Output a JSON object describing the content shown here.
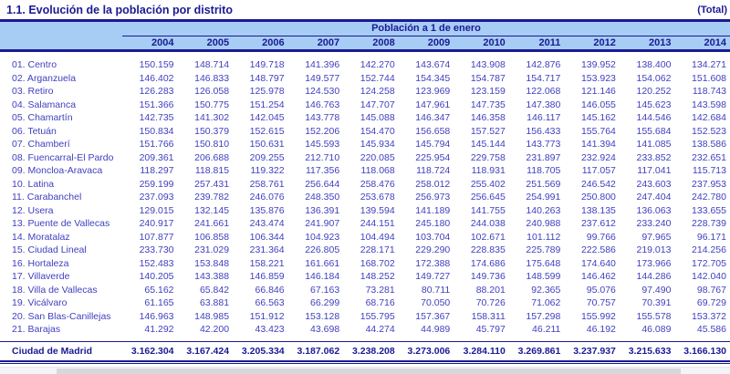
{
  "title": "1.1. Evolución de la población por distrito",
  "total_note": "(Total)",
  "header": {
    "group_label": "Población a 1 de enero",
    "years": [
      "2004",
      "2005",
      "2006",
      "2007",
      "2008",
      "2009",
      "2010",
      "2011",
      "2012",
      "2013",
      "2014"
    ]
  },
  "rows": [
    {
      "label": "01. Centro",
      "values": [
        "150.159",
        "148.714",
        "149.718",
        "141.396",
        "142.270",
        "143.674",
        "143.908",
        "142.876",
        "139.952",
        "138.400",
        "134.271"
      ]
    },
    {
      "label": "02. Arganzuela",
      "values": [
        "146.402",
        "146.833",
        "148.797",
        "149.577",
        "152.744",
        "154.345",
        "154.787",
        "154.717",
        "153.923",
        "154.062",
        "151.608"
      ]
    },
    {
      "label": "03. Retiro",
      "values": [
        "126.283",
        "126.058",
        "125.978",
        "124.530",
        "124.258",
        "123.969",
        "123.159",
        "122.068",
        "121.146",
        "120.252",
        "118.743"
      ]
    },
    {
      "label": "04. Salamanca",
      "values": [
        "151.366",
        "150.775",
        "151.254",
        "146.763",
        "147.707",
        "147.961",
        "147.735",
        "147.380",
        "146.055",
        "145.623",
        "143.598"
      ]
    },
    {
      "label": "05. Chamartín",
      "values": [
        "142.735",
        "141.302",
        "142.045",
        "143.778",
        "145.088",
        "146.347",
        "146.358",
        "146.117",
        "145.162",
        "144.546",
        "142.684"
      ]
    },
    {
      "label": "06. Tetuán",
      "values": [
        "150.834",
        "150.379",
        "152.615",
        "152.206",
        "154.470",
        "156.658",
        "157.527",
        "156.433",
        "155.764",
        "155.684",
        "152.523"
      ]
    },
    {
      "label": "07. Chamberí",
      "values": [
        "151.766",
        "150.810",
        "150.631",
        "145.593",
        "145.934",
        "145.794",
        "145.144",
        "143.773",
        "141.394",
        "141.085",
        "138.586"
      ]
    },
    {
      "label": "08. Fuencarral-El Pardo",
      "values": [
        "209.361",
        "206.688",
        "209.255",
        "212.710",
        "220.085",
        "225.954",
        "229.758",
        "231.897",
        "232.924",
        "233.852",
        "232.651"
      ]
    },
    {
      "label": "09. Moncloa-Aravaca",
      "values": [
        "118.297",
        "118.815",
        "119.322",
        "117.356",
        "118.068",
        "118.724",
        "118.931",
        "118.705",
        "117.057",
        "117.041",
        "115.713"
      ]
    },
    {
      "label": "10. Latina",
      "values": [
        "259.199",
        "257.431",
        "258.761",
        "256.644",
        "258.476",
        "258.012",
        "255.402",
        "251.569",
        "246.542",
        "243.603",
        "237.953"
      ]
    },
    {
      "label": "11. Carabanchel",
      "values": [
        "237.093",
        "239.782",
        "246.076",
        "248.350",
        "253.678",
        "256.973",
        "256.645",
        "254.991",
        "250.800",
        "247.404",
        "242.780"
      ]
    },
    {
      "label": "12. Usera",
      "values": [
        "129.015",
        "132.145",
        "135.876",
        "136.391",
        "139.594",
        "141.189",
        "141.755",
        "140.263",
        "138.135",
        "136.063",
        "133.655"
      ]
    },
    {
      "label": "13. Puente de Vallecas",
      "values": [
        "240.917",
        "241.661",
        "243.474",
        "241.907",
        "244.151",
        "245.180",
        "244.038",
        "240.988",
        "237.612",
        "233.240",
        "228.739"
      ]
    },
    {
      "label": "14. Moratalaz",
      "values": [
        "107.877",
        "106.858",
        "106.344",
        "104.923",
        "104.494",
        "103.704",
        "102.671",
        "101.112",
        "99.766",
        "97.965",
        "96.171"
      ]
    },
    {
      "label": "15. Ciudad Lineal",
      "values": [
        "233.730",
        "231.029",
        "231.364",
        "226.805",
        "228.171",
        "229.290",
        "228.835",
        "225.789",
        "222.586",
        "219.013",
        "214.256"
      ]
    },
    {
      "label": "16. Hortaleza",
      "values": [
        "152.483",
        "153.848",
        "158.221",
        "161.661",
        "168.702",
        "172.388",
        "174.686",
        "175.648",
        "174.640",
        "173.966",
        "172.705"
      ]
    },
    {
      "label": "17. Villaverde",
      "values": [
        "140.205",
        "143.388",
        "146.859",
        "146.184",
        "148.252",
        "149.727",
        "149.736",
        "148.599",
        "146.462",
        "144.286",
        "142.040"
      ]
    },
    {
      "label": "18. Villa de Vallecas",
      "values": [
        "65.162",
        "65.842",
        "66.846",
        "67.163",
        "73.281",
        "80.711",
        "88.201",
        "92.365",
        "95.076",
        "97.490",
        "98.767"
      ]
    },
    {
      "label": "19. Vicálvaro",
      "values": [
        "61.165",
        "63.881",
        "66.563",
        "66.299",
        "68.716",
        "70.050",
        "70.726",
        "71.062",
        "70.757",
        "70.391",
        "69.729"
      ]
    },
    {
      "label": "20. San Blas-Canillejas",
      "values": [
        "146.963",
        "148.985",
        "151.912",
        "153.128",
        "155.795",
        "157.367",
        "158.311",
        "157.298",
        "155.992",
        "155.578",
        "153.372"
      ]
    },
    {
      "label": "21. Barajas",
      "values": [
        "41.292",
        "42.200",
        "43.423",
        "43.698",
        "44.274",
        "44.989",
        "45.797",
        "46.211",
        "46.192",
        "46.089",
        "45.586"
      ]
    }
  ],
  "total_row": {
    "label": "Ciudad de Madrid",
    "values": [
      "3.162.304",
      "3.167.424",
      "3.205.334",
      "3.187.062",
      "3.238.208",
      "3.273.006",
      "3.284.110",
      "3.269.861",
      "3.237.937",
      "3.215.633",
      "3.166.130"
    ]
  },
  "colors": {
    "accent_navy": "#1a1a94",
    "data_text_blue": "#4040c0",
    "header_band_bg": "#a8cdf4",
    "rule_line": "#1a1a94",
    "scrollbar_track": "#f4f4f6",
    "scrollbar_thumb": "#d8d8da"
  }
}
